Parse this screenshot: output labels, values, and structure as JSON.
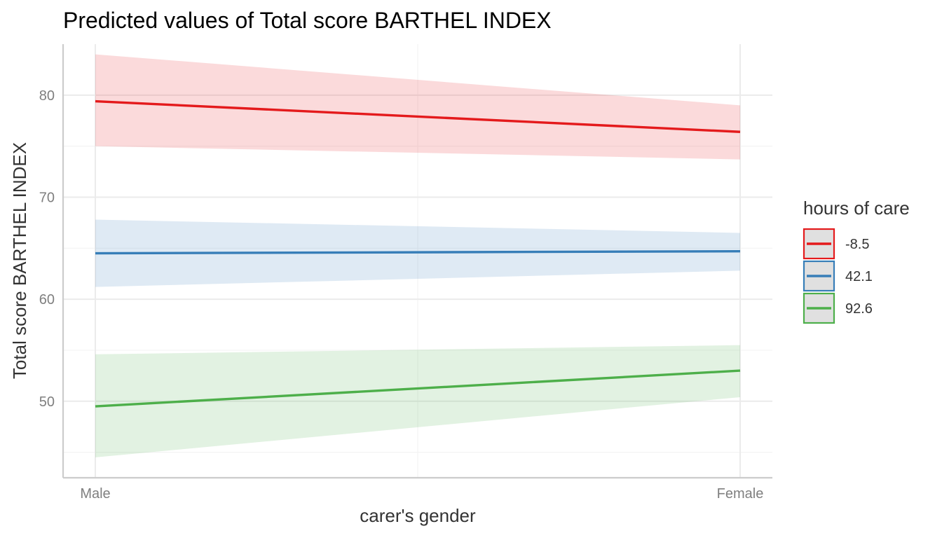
{
  "chart_data": {
    "type": "line",
    "title": "Predicted values of Total score BARTHEL INDEX",
    "xlabel": "carer's gender",
    "ylabel": "Total score BARTHEL INDEX",
    "categories": [
      "Male",
      "Female"
    ],
    "yticks": [
      50,
      60,
      70,
      80
    ],
    "ylim": [
      42.5,
      85
    ],
    "grid": true,
    "legend": {
      "title": "hours of care",
      "position": "right"
    },
    "series": [
      {
        "name": "-8.5",
        "color": "#e41a1c",
        "values": [
          79.4,
          76.4
        ],
        "lower": [
          75.0,
          73.7
        ],
        "upper": [
          84.0,
          79.0
        ]
      },
      {
        "name": "42.1",
        "color": "#377eb8",
        "values": [
          64.5,
          64.7
        ],
        "lower": [
          61.2,
          62.8
        ],
        "upper": [
          67.8,
          66.5
        ]
      },
      {
        "name": "92.6",
        "color": "#4daf4a",
        "values": [
          49.5,
          53.0
        ],
        "lower": [
          44.5,
          50.4
        ],
        "upper": [
          54.6,
          55.5
        ]
      }
    ]
  }
}
